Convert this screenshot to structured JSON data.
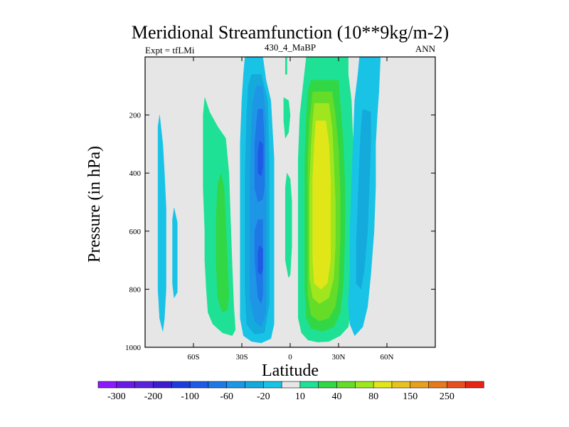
{
  "chart_data": {
    "type": "contour",
    "title": "Meridional Streamfunction (10**9kg/m-2)",
    "subtitle_left": "Expt = tfLMi",
    "subtitle_center": "430_4_MaBP",
    "subtitle_right": "ANN",
    "xlabel": "Latitude",
    "ylabel": "Pressure (in hPa)",
    "xlim": [
      -90,
      90
    ],
    "ylim": [
      1000,
      0
    ],
    "x_ticks": [
      {
        "value": -60,
        "label": "60S"
      },
      {
        "value": -30,
        "label": "30S"
      },
      {
        "value": 0,
        "label": "0"
      },
      {
        "value": 30,
        "label": "30N"
      },
      {
        "value": 60,
        "label": "60N"
      }
    ],
    "y_ticks": [
      {
        "value": 200,
        "label": "200"
      },
      {
        "value": 400,
        "label": "400"
      },
      {
        "value": 600,
        "label": "600"
      },
      {
        "value": 800,
        "label": "800"
      },
      {
        "value": 1000,
        "label": "1000"
      }
    ],
    "background_color": "#e6e6e6",
    "colorbar": {
      "bins": [
        {
          "color": "#8c1aff",
          "label": "-300"
        },
        {
          "color": "#6b1ae6",
          "label": ""
        },
        {
          "color": "#5a23dc",
          "label": "-200"
        },
        {
          "color": "#3c1ecd",
          "label": ""
        },
        {
          "color": "#1e3cdc",
          "label": "-100"
        },
        {
          "color": "#1e5ae6",
          "label": ""
        },
        {
          "color": "#1e78e6",
          "label": "-60"
        },
        {
          "color": "#1e96e6",
          "label": ""
        },
        {
          "color": "#14aadc",
          "label": "-20"
        },
        {
          "color": "#19c3e6",
          "label": ""
        },
        {
          "color": "#e6e6e6",
          "label": "10"
        },
        {
          "color": "#1ee196",
          "label": ""
        },
        {
          "color": "#32d746",
          "label": "40"
        },
        {
          "color": "#64dc28",
          "label": ""
        },
        {
          "color": "#a0e61e",
          "label": "80"
        },
        {
          "color": "#e1e619",
          "label": ""
        },
        {
          "color": "#e6c31e",
          "label": "150"
        },
        {
          "color": "#e6a01e",
          "label": ""
        },
        {
          "color": "#e6781e",
          "label": "250"
        },
        {
          "color": "#e6501e",
          "label": ""
        },
        {
          "color": "#e62314",
          "label": ""
        }
      ]
    },
    "regions": [
      {
        "name": "cell-sh-high-lat-a",
        "color": "#19c3e6",
        "points": [
          [
            -81,
            200
          ],
          [
            -79,
            300
          ],
          [
            -78,
            400
          ],
          [
            -77,
            520
          ],
          [
            -77,
            650
          ],
          [
            -77,
            800
          ],
          [
            -78,
            900
          ],
          [
            -79,
            945
          ],
          [
            -81,
            900
          ],
          [
            -82,
            800
          ],
          [
            -82,
            650
          ],
          [
            -82,
            500
          ],
          [
            -82,
            350
          ],
          [
            -82,
            240
          ]
        ]
      },
      {
        "name": "cell-sh-high-lat-b",
        "color": "#19c3e6",
        "points": [
          [
            -72,
            520
          ],
          [
            -70,
            570
          ],
          [
            -70,
            700
          ],
          [
            -70,
            810
          ],
          [
            -72,
            830
          ],
          [
            -73,
            780
          ],
          [
            -73,
            650
          ],
          [
            -73,
            560
          ]
        ]
      },
      {
        "name": "ferrel-sh-outer",
        "color": "#1ee196",
        "points": [
          [
            -53,
            140
          ],
          [
            -50,
            190
          ],
          [
            -45,
            240
          ],
          [
            -40,
            280
          ],
          [
            -38,
            400
          ],
          [
            -37,
            560
          ],
          [
            -36,
            720
          ],
          [
            -35,
            860
          ],
          [
            -34,
            940
          ],
          [
            -36,
            960
          ],
          [
            -42,
            950
          ],
          [
            -48,
            920
          ],
          [
            -51,
            880
          ],
          [
            -52,
            800
          ],
          [
            -53,
            700
          ],
          [
            -53,
            600
          ],
          [
            -54,
            450
          ],
          [
            -54,
            300
          ],
          [
            -54,
            200
          ]
        ]
      },
      {
        "name": "ferrel-sh-inner",
        "color": "#32d746",
        "points": [
          [
            -43,
            400
          ],
          [
            -41,
            450
          ],
          [
            -40,
            560
          ],
          [
            -39,
            700
          ],
          [
            -38,
            820
          ],
          [
            -39,
            870
          ],
          [
            -42,
            880
          ],
          [
            -45,
            830
          ],
          [
            -46,
            700
          ],
          [
            -46,
            560
          ],
          [
            -45,
            440
          ]
        ]
      },
      {
        "name": "hadley-sh-c1",
        "color": "#19c3e6",
        "points": [
          [
            -28,
            0
          ],
          [
            -17,
            0
          ],
          [
            -15,
            80
          ],
          [
            -12,
            150
          ],
          [
            -10,
            350
          ],
          [
            -10,
            600
          ],
          [
            -10,
            800
          ],
          [
            -10,
            920
          ],
          [
            -12,
            970
          ],
          [
            -18,
            985
          ],
          [
            -24,
            980
          ],
          [
            -29,
            960
          ],
          [
            -31,
            900
          ],
          [
            -31,
            700
          ],
          [
            -31,
            500
          ],
          [
            -31,
            300
          ],
          [
            -30,
            150
          ],
          [
            -29,
            60
          ]
        ]
      },
      {
        "name": "hadley-sh-c2",
        "color": "#14aadc",
        "points": [
          [
            -24,
            60
          ],
          [
            -18,
            60
          ],
          [
            -14,
            150
          ],
          [
            -13,
            350
          ],
          [
            -13,
            600
          ],
          [
            -13,
            850
          ],
          [
            -16,
            950
          ],
          [
            -22,
            955
          ],
          [
            -27,
            920
          ],
          [
            -28,
            800
          ],
          [
            -28,
            600
          ],
          [
            -28,
            400
          ],
          [
            -27,
            200
          ],
          [
            -26,
            100
          ]
        ]
      },
      {
        "name": "hadley-sh-c3",
        "color": "#1e96e6",
        "points": [
          [
            -21,
            100
          ],
          [
            -17,
            100
          ],
          [
            -15,
            220
          ],
          [
            -15,
            500
          ],
          [
            -15,
            750
          ],
          [
            -15,
            880
          ],
          [
            -18,
            930
          ],
          [
            -22,
            910
          ],
          [
            -25,
            830
          ],
          [
            -25,
            600
          ],
          [
            -25,
            400
          ],
          [
            -24,
            230
          ],
          [
            -23,
            150
          ]
        ]
      },
      {
        "name": "hadley-sh-c4",
        "color": "#1e78e6",
        "points": [
          [
            -20,
            180
          ],
          [
            -17,
            180
          ],
          [
            -16,
            300
          ],
          [
            -16,
            450
          ],
          [
            -17,
            490
          ],
          [
            -20,
            500
          ],
          [
            -22,
            450
          ],
          [
            -22,
            300
          ],
          [
            -21,
            230
          ]
        ]
      },
      {
        "name": "hadley-sh-c4b",
        "color": "#1e78e6",
        "points": [
          [
            -20,
            560
          ],
          [
            -17,
            560
          ],
          [
            -17,
            700
          ],
          [
            -17,
            820
          ],
          [
            -18,
            850
          ],
          [
            -20,
            830
          ],
          [
            -22,
            700
          ],
          [
            -22,
            600
          ]
        ]
      },
      {
        "name": "hadley-sh-c5",
        "color": "#1e5ae6",
        "points": [
          [
            -19,
            290
          ],
          [
            -17,
            300
          ],
          [
            -17,
            380
          ],
          [
            -18,
            410
          ],
          [
            -20,
            400
          ],
          [
            -20,
            330
          ]
        ]
      },
      {
        "name": "hadley-sh-c5b",
        "color": "#1e5ae6",
        "points": [
          [
            -19,
            650
          ],
          [
            -17,
            660
          ],
          [
            -17,
            730
          ],
          [
            -18,
            750
          ],
          [
            -20,
            740
          ],
          [
            -20,
            670
          ]
        ]
      },
      {
        "name": "eq-cell-upper",
        "color": "#1ee196",
        "points": [
          [
            -4,
            140
          ],
          [
            -1,
            150
          ],
          [
            0,
            200
          ],
          [
            -1,
            260
          ],
          [
            -3,
            280
          ],
          [
            -4,
            220
          ]
        ]
      },
      {
        "name": "eq-cell-lower",
        "color": "#1ee196",
        "points": [
          [
            -2,
            400
          ],
          [
            0,
            420
          ],
          [
            1,
            500
          ],
          [
            1,
            650
          ],
          [
            0,
            750
          ],
          [
            -1,
            760
          ],
          [
            -3,
            700
          ],
          [
            -3,
            550
          ],
          [
            -3,
            450
          ]
        ]
      },
      {
        "name": "eq-cell-top",
        "color": "#1ee196",
        "points": [
          [
            -3,
            0
          ],
          [
            -2,
            0
          ],
          [
            -2,
            60
          ],
          [
            -3,
            60
          ]
        ]
      },
      {
        "name": "hadley-nh-c1",
        "color": "#1ee196",
        "points": [
          [
            10,
            0
          ],
          [
            36,
            0
          ],
          [
            36,
            60
          ],
          [
            38,
            150
          ],
          [
            39,
            300
          ],
          [
            40,
            450
          ],
          [
            40,
            600
          ],
          [
            39,
            750
          ],
          [
            38,
            850
          ],
          [
            36,
            930
          ],
          [
            31,
            960
          ],
          [
            24,
            980
          ],
          [
            17,
            982
          ],
          [
            11,
            975
          ],
          [
            7,
            950
          ],
          [
            5,
            900
          ],
          [
            5,
            800
          ],
          [
            5,
            650
          ],
          [
            5,
            500
          ],
          [
            5,
            350
          ],
          [
            6,
            200
          ],
          [
            8,
            100
          ]
        ]
      },
      {
        "name": "hadley-nh-c2",
        "color": "#32d746",
        "points": [
          [
            13,
            80
          ],
          [
            30,
            80
          ],
          [
            31,
            160
          ],
          [
            33,
            300
          ],
          [
            34,
            450
          ],
          [
            34,
            600
          ],
          [
            33,
            780
          ],
          [
            31,
            880
          ],
          [
            27,
            930
          ],
          [
            20,
            945
          ],
          [
            13,
            935
          ],
          [
            10,
            900
          ],
          [
            9,
            800
          ],
          [
            9,
            650
          ],
          [
            9,
            500
          ],
          [
            9,
            350
          ],
          [
            10,
            200
          ],
          [
            11,
            120
          ]
        ]
      },
      {
        "name": "hadley-nh-c3",
        "color": "#64dc28",
        "points": [
          [
            14,
            120
          ],
          [
            26,
            120
          ],
          [
            28,
            200
          ],
          [
            30,
            320
          ],
          [
            31,
            470
          ],
          [
            31,
            620
          ],
          [
            30,
            780
          ],
          [
            28,
            860
          ],
          [
            24,
            900
          ],
          [
            18,
            910
          ],
          [
            13,
            890
          ],
          [
            11,
            820
          ],
          [
            11,
            650
          ],
          [
            11,
            500
          ],
          [
            11,
            350
          ],
          [
            12,
            220
          ]
        ]
      },
      {
        "name": "hadley-nh-c4",
        "color": "#a0e61e",
        "points": [
          [
            15,
            160
          ],
          [
            24,
            160
          ],
          [
            26,
            240
          ],
          [
            27,
            360
          ],
          [
            28,
            500
          ],
          [
            28,
            650
          ],
          [
            27,
            760
          ],
          [
            24,
            830
          ],
          [
            18,
            850
          ],
          [
            14,
            830
          ],
          [
            12,
            760
          ],
          [
            12,
            600
          ],
          [
            12,
            450
          ],
          [
            13,
            300
          ],
          [
            14,
            220
          ]
        ]
      },
      {
        "name": "hadley-nh-c5",
        "color": "#e1e619",
        "points": [
          [
            16,
            220
          ],
          [
            22,
            220
          ],
          [
            24,
            300
          ],
          [
            25,
            420
          ],
          [
            25,
            560
          ],
          [
            25,
            700
          ],
          [
            23,
            780
          ],
          [
            19,
            800
          ],
          [
            15,
            780
          ],
          [
            14,
            700
          ],
          [
            14,
            560
          ],
          [
            14,
            420
          ],
          [
            15,
            300
          ]
        ]
      },
      {
        "name": "ferrel-nh-c1",
        "color": "#19c3e6",
        "points": [
          [
            43,
            0
          ],
          [
            56,
            0
          ],
          [
            55,
            120
          ],
          [
            54,
            200
          ],
          [
            53,
            300
          ],
          [
            53,
            450
          ],
          [
            52,
            600
          ],
          [
            50,
            750
          ],
          [
            48,
            860
          ],
          [
            45,
            930
          ],
          [
            40,
            960
          ],
          [
            37,
            920
          ],
          [
            36,
            850
          ],
          [
            37,
            750
          ],
          [
            37,
            600
          ],
          [
            38,
            450
          ],
          [
            39,
            300
          ],
          [
            40,
            150
          ],
          [
            42,
            60
          ]
        ]
      },
      {
        "name": "ferrel-nh-c2",
        "color": "#14aadc",
        "points": [
          [
            45,
            180
          ],
          [
            50,
            190
          ],
          [
            50,
            300
          ],
          [
            49,
            450
          ],
          [
            48,
            600
          ],
          [
            46,
            730
          ],
          [
            44,
            800
          ],
          [
            41,
            780
          ],
          [
            41,
            650
          ],
          [
            42,
            500
          ],
          [
            43,
            350
          ],
          [
            44,
            240
          ]
        ]
      }
    ]
  }
}
